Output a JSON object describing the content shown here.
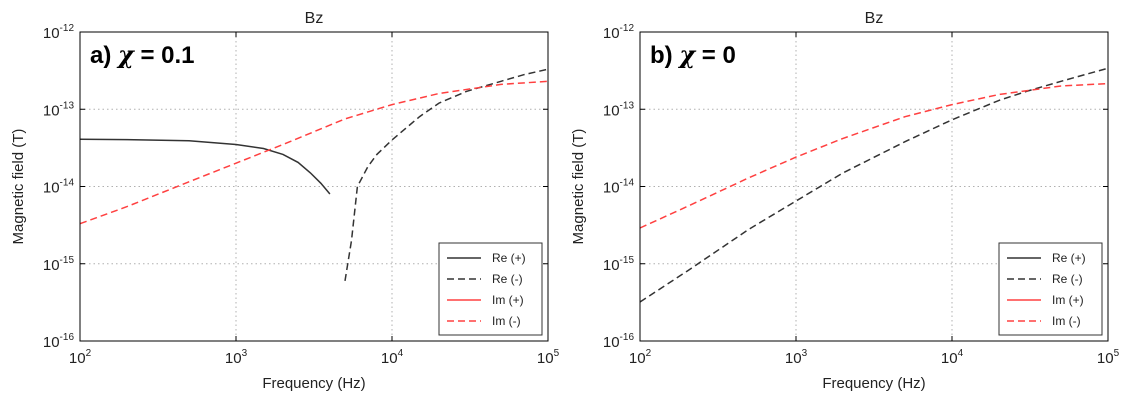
{
  "chart_data": [
    {
      "type": "line",
      "title": "Bz",
      "annotation_prefix": "a)",
      "annotation_symbol": "χ",
      "annotation_value": "= 0.1",
      "xlabel": "Frequency (Hz)",
      "ylabel": "Magnetic field (T)",
      "xscale": "log",
      "yscale": "log",
      "xlim": [
        100,
        100000
      ],
      "ylim": [
        1e-16,
        1e-12
      ],
      "xticks": [
        {
          "base": "10",
          "exp": "2",
          "value": 100
        },
        {
          "base": "10",
          "exp": "3",
          "value": 1000
        },
        {
          "base": "10",
          "exp": "4",
          "value": 10000
        },
        {
          "base": "10",
          "exp": "5",
          "value": 100000
        }
      ],
      "yticks": [
        {
          "base": "10",
          "exp": "-12",
          "value": 1e-12
        },
        {
          "base": "10",
          "exp": "-13",
          "value": 1e-13
        },
        {
          "base": "10",
          "exp": "-14",
          "value": 1e-14
        },
        {
          "base": "10",
          "exp": "-15",
          "value": 1e-15
        },
        {
          "base": "10",
          "exp": "-16",
          "value": 1e-16
        }
      ],
      "grid": true,
      "legend_position": "bottom-right",
      "series": [
        {
          "name": "Re (+)",
          "color": "#333333",
          "dash": "solid",
          "x": [
            100,
            200,
            500,
            1000,
            1500,
            2000,
            2500,
            3000,
            3500,
            4000
          ],
          "y": [
            4.1e-14,
            4.05e-14,
            3.9e-14,
            3.5e-14,
            3.1e-14,
            2.6e-14,
            2.05e-14,
            1.5e-14,
            1.1e-14,
            8e-15
          ]
        },
        {
          "name": "Re (-)",
          "color": "#333333",
          "dash": "dashed",
          "x": [
            5000,
            5500,
            6000,
            7000,
            8000,
            10000,
            15000,
            20000,
            30000,
            50000,
            70000,
            100000
          ],
          "y": [
            6e-16,
            2e-15,
            1e-14,
            1.8e-14,
            2.6e-14,
            4e-14,
            8e-14,
            1.2e-13,
            1.7e-13,
            2.3e-13,
            2.8e-13,
            3.3e-13
          ]
        },
        {
          "name": "Im (+)",
          "color": "#ff4040",
          "dash": "solid",
          "x": [],
          "y": []
        },
        {
          "name": "Im (-)",
          "color": "#ff4040",
          "dash": "dashed",
          "x": [
            100,
            200,
            500,
            1000,
            2000,
            5000,
            10000,
            20000,
            50000,
            100000
          ],
          "y": [
            3.3e-15,
            5.5e-15,
            1.15e-14,
            2e-14,
            3.5e-14,
            7.5e-14,
            1.15e-13,
            1.6e-13,
            2.1e-13,
            2.3e-13
          ]
        }
      ]
    },
    {
      "type": "line",
      "title": "Bz",
      "annotation_prefix": "b)",
      "annotation_symbol": "χ",
      "annotation_value": "= 0",
      "xlabel": "Frequency (Hz)",
      "ylabel": "Magnetic field (T)",
      "xscale": "log",
      "yscale": "log",
      "xlim": [
        100,
        100000
      ],
      "ylim": [
        1e-16,
        1e-12
      ],
      "xticks": [
        {
          "base": "10",
          "exp": "2",
          "value": 100
        },
        {
          "base": "10",
          "exp": "3",
          "value": 1000
        },
        {
          "base": "10",
          "exp": "4",
          "value": 10000
        },
        {
          "base": "10",
          "exp": "5",
          "value": 100000
        }
      ],
      "yticks": [
        {
          "base": "10",
          "exp": "-12",
          "value": 1e-12
        },
        {
          "base": "10",
          "exp": "-13",
          "value": 1e-13
        },
        {
          "base": "10",
          "exp": "-14",
          "value": 1e-14
        },
        {
          "base": "10",
          "exp": "-15",
          "value": 1e-15
        },
        {
          "base": "10",
          "exp": "-16",
          "value": 1e-16
        }
      ],
      "grid": true,
      "legend_position": "bottom-right",
      "series": [
        {
          "name": "Re (+)",
          "color": "#333333",
          "dash": "solid",
          "x": [],
          "y": []
        },
        {
          "name": "Re (-)",
          "color": "#333333",
          "dash": "dashed",
          "x": [
            100,
            200,
            500,
            1000,
            2000,
            5000,
            10000,
            20000,
            30000,
            50000,
            100000
          ],
          "y": [
            3.2e-16,
            8e-16,
            2.8e-15,
            6.5e-15,
            1.5e-14,
            3.8e-14,
            7.3e-14,
            1.3e-13,
            1.7e-13,
            2.3e-13,
            3.4e-13
          ]
        },
        {
          "name": "Im (+)",
          "color": "#ff4040",
          "dash": "solid",
          "x": [],
          "y": []
        },
        {
          "name": "Im (-)",
          "color": "#ff4040",
          "dash": "dashed",
          "x": [
            100,
            200,
            500,
            1000,
            2000,
            5000,
            10000,
            20000,
            50000,
            100000
          ],
          "y": [
            2.9e-15,
            5.5e-15,
            1.3e-14,
            2.4e-14,
            4.2e-14,
            8e-14,
            1.15e-13,
            1.55e-13,
            2e-13,
            2.15e-13
          ]
        }
      ]
    }
  ]
}
